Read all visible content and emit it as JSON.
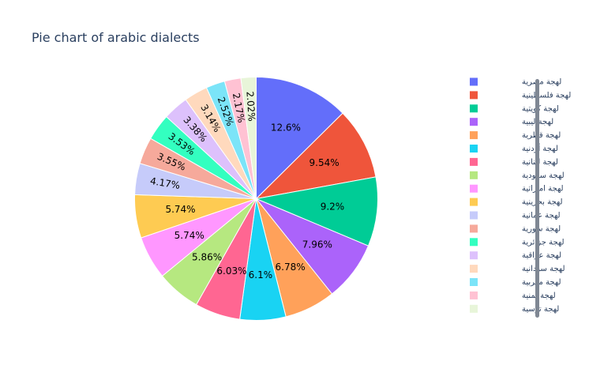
{
  "chart_data": {
    "type": "pie",
    "title": "Pie chart of arabic dialects",
    "legend_position": "right",
    "slices": [
      {
        "label": "لهجة مصرية",
        "value": 12.6,
        "text": "12.6%",
        "color": "#636efa"
      },
      {
        "label": "لهجة فلسطينية",
        "value": 9.54,
        "text": "9.54%",
        "color": "#EF553B"
      },
      {
        "label": "لهجة كويتية",
        "value": 9.2,
        "text": "9.2%",
        "color": "#00cc96"
      },
      {
        "label": "لهجة ليبية",
        "value": 7.96,
        "text": "7.96%",
        "color": "#ab63fa"
      },
      {
        "label": "لهجة قطرية",
        "value": 6.78,
        "text": "6.78%",
        "color": "#FFA15A"
      },
      {
        "label": "لهجة أردنية",
        "value": 6.1,
        "text": "6.1%",
        "color": "#19d3f3"
      },
      {
        "label": "لهجة لبنانية",
        "value": 6.03,
        "text": "6.03%",
        "color": "#FF6692"
      },
      {
        "label": "لهجة سعودية",
        "value": 5.86,
        "text": "5.86%",
        "color": "#B6E880"
      },
      {
        "label": "لهجة اماراتية",
        "value": 5.74,
        "text": "5.74%",
        "color": "#FF97FF"
      },
      {
        "label": "لهجة بحرينية",
        "value": 5.74,
        "text": "5.74%",
        "color": "#FECB52"
      },
      {
        "label": "لهجة عمانية",
        "value": 4.17,
        "text": "4.17%",
        "color": "#c6cbfa"
      },
      {
        "label": "لهجة سورية",
        "value": 3.55,
        "text": "3.55%",
        "color": "#f6a99b"
      },
      {
        "label": "لهجة جزائرية",
        "value": 3.53,
        "text": "3.53%",
        "color": "#33ffc0"
      },
      {
        "label": "لهجة عراقية",
        "value": 3.38,
        "text": "3.38%",
        "color": "#ddc1fc"
      },
      {
        "label": "لهجة سودانية",
        "value": 3.14,
        "text": "3.14%",
        "color": "#ffd9bd"
      },
      {
        "label": "لهجة مغربية",
        "value": 2.52,
        "text": "2.52%",
        "color": "#7be4f8"
      },
      {
        "label": "لهجة يمنية",
        "value": 2.17,
        "text": "2.17%",
        "color": "#ffc2d3"
      },
      {
        "label": "لهجة توسية",
        "value": 2.02,
        "text": "2.02%",
        "color": "#e8f5d9"
      }
    ]
  }
}
